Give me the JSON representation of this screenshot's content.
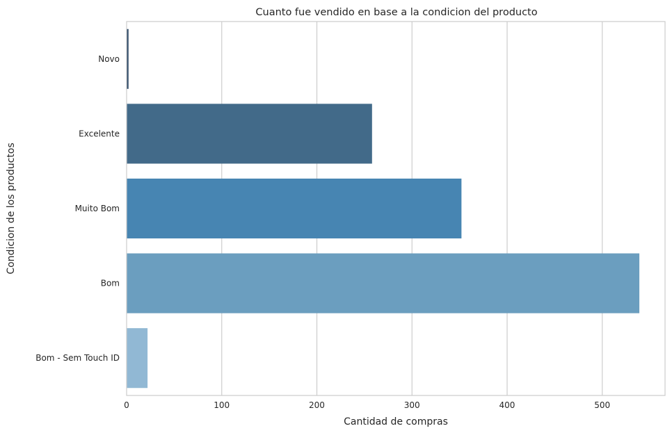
{
  "chart_data": {
    "type": "bar",
    "orientation": "horizontal",
    "title": "Cuanto fue vendido en base a la condicion del producto",
    "xlabel": "Cantidad de compras",
    "ylabel": "Condicion de los productos",
    "categories": [
      "Novo",
      "Excelente",
      "Muito Bom",
      "Bom",
      "Bom - Sem Touch ID"
    ],
    "values": [
      2,
      258,
      352,
      539,
      22
    ],
    "colors": [
      "#2f4b68",
      "#426a89",
      "#4785b2",
      "#6b9ebf",
      "#91b8d4"
    ],
    "xlim": [
      0,
      566
    ],
    "xticks": [
      0,
      100,
      200,
      300,
      400,
      500
    ],
    "grid": true
  }
}
